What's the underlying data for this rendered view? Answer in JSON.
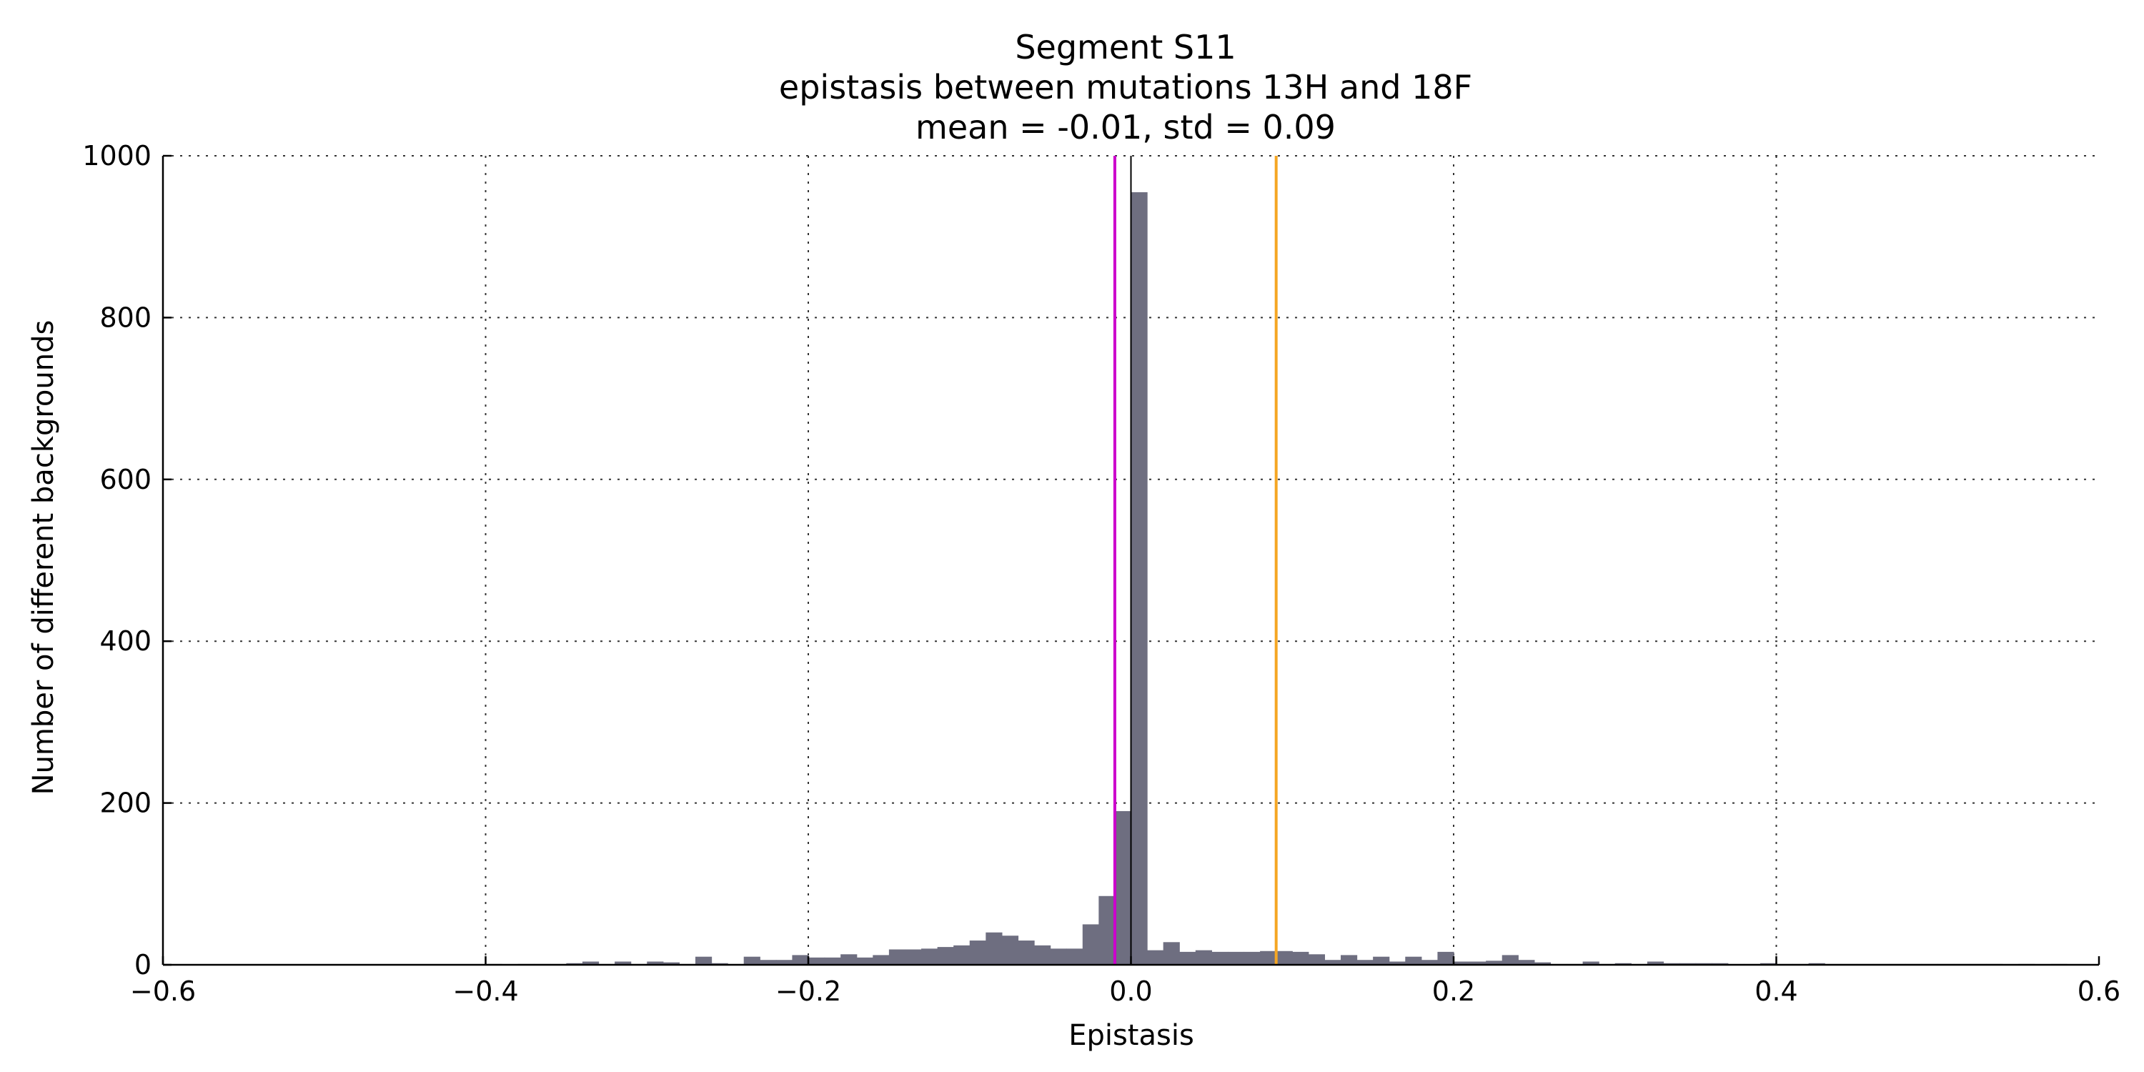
{
  "chart_data": {
    "type": "bar",
    "title_lines": [
      "Segment S11",
      "epistasis between mutations 13H and 18F",
      "mean = -0.01, std = 0.09"
    ],
    "xlabel": "Epistasis",
    "ylabel": "Number of different backgrounds",
    "xlim": [
      -0.6,
      0.6
    ],
    "ylim": [
      0,
      1000
    ],
    "x_ticks": [
      -0.6,
      -0.4,
      -0.2,
      0.0,
      0.2,
      0.4,
      0.6
    ],
    "x_tick_labels": [
      "−0.6",
      "−0.4",
      "−0.2",
      "0.0",
      "0.2",
      "0.4",
      "0.6"
    ],
    "y_ticks": [
      0,
      200,
      400,
      600,
      800,
      1000
    ],
    "y_tick_labels": [
      "0",
      "200",
      "400",
      "600",
      "800",
      "1000"
    ],
    "grid": true,
    "bar_color": "#6e6e80",
    "bin_start": -0.6,
    "bin_width": 0.01,
    "counts": [
      0,
      0,
      0,
      0,
      0,
      0,
      0,
      0,
      0,
      0,
      0,
      0,
      0,
      0,
      0,
      0,
      0,
      0,
      0,
      0,
      1,
      0,
      1,
      1,
      1,
      2,
      4,
      1,
      4,
      1,
      4,
      3,
      1,
      10,
      2,
      1,
      10,
      6,
      6,
      12,
      9,
      9,
      13,
      9,
      12,
      19,
      19,
      20,
      22,
      24,
      30,
      40,
      36,
      30,
      24,
      20,
      20,
      50,
      85,
      190,
      955,
      18,
      28,
      16,
      18,
      16,
      16,
      16,
      17,
      17,
      16,
      13,
      6,
      12,
      6,
      10,
      4,
      10,
      6,
      16,
      4,
      4,
      5,
      12,
      6,
      3,
      1,
      1,
      4,
      1,
      2,
      1,
      4,
      2,
      2,
      2,
      2,
      1,
      1,
      2,
      1,
      1,
      2,
      1,
      1,
      1,
      1,
      1,
      1,
      1,
      1,
      1,
      1,
      1,
      0,
      1,
      0,
      1,
      0,
      0
    ],
    "vertical_lines": [
      {
        "x": -0.01,
        "color": "#cc00cc"
      },
      {
        "x": 0.0,
        "color": "#000000"
      },
      {
        "x": 0.09,
        "color": "#f5a623"
      }
    ]
  }
}
